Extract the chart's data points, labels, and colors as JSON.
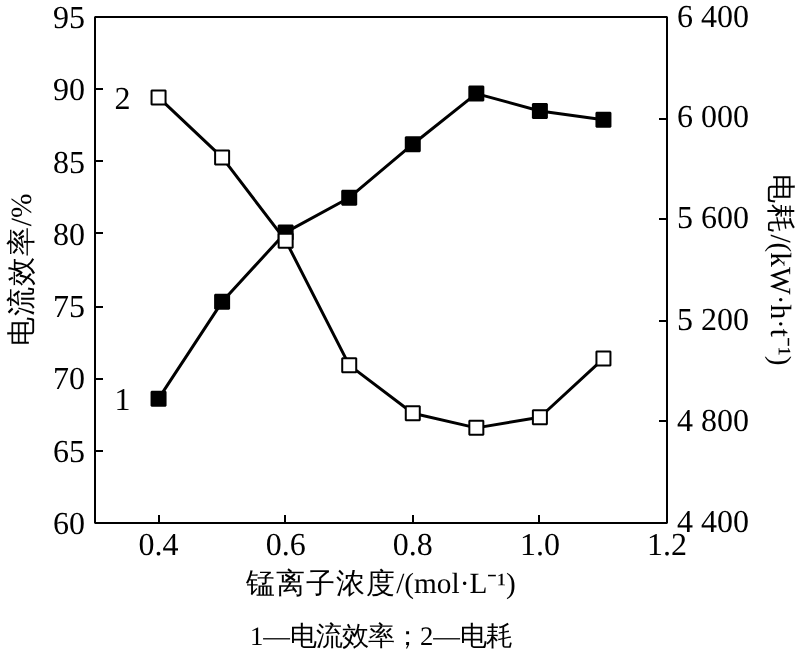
{
  "chart_data": {
    "type": "line",
    "xlabel": "锰离子浓度/(mol·L⁻¹)",
    "ylabel": "电流效率/%",
    "y2label": "电耗/(kW·h·t⁻¹)",
    "x": [
      0.4,
      0.5,
      0.6,
      0.7,
      0.8,
      0.9,
      1.0,
      1.1
    ],
    "series": [
      {
        "color": "#000000",
        "values": [
          68.6,
          75.3,
          80.1,
          82.5,
          86.2,
          89.7,
          88.5,
          87.9
        ]
      },
      {
        "color": "#000000",
        "axis": "y2",
        "values": [
          6082,
          5845,
          5516,
          5024,
          4834,
          4776,
          4818,
          5050
        ]
      }
    ],
    "xlim": [
      0.3,
      1.2
    ],
    "xticks": [
      0.4,
      0.6,
      0.8,
      {
        "value": 1.0,
        "label": "1.0"
      },
      1.2
    ],
    "ylim": [
      60,
      95
    ],
    "yticks": [
      60,
      65,
      70,
      75,
      80,
      85,
      90,
      95
    ],
    "y2lim": [
      4400,
      6400
    ],
    "y2ticks": [
      {
        "value": 4400,
        "label": "4 400"
      },
      {
        "value": 4800,
        "label": "4 800"
      },
      {
        "value": 5200,
        "label": "5 200"
      },
      {
        "value": 5600,
        "label": "5 600"
      },
      {
        "value": 6000,
        "label": "6 000"
      },
      {
        "value": 6400,
        "label": "6 400"
      }
    ],
    "marker": "square",
    "line_style": "solid",
    "grid": false,
    "annotations": [
      {
        "text": "1",
        "x": 0.4,
        "y": 68.6
      },
      {
        "text": "2",
        "x": 0.4,
        "y": 89.4
      },
      "1—电流效率；2—电耗"
    ]
  }
}
